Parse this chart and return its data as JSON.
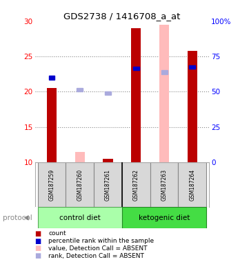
{
  "title": "GDS2738 / 1416708_a_at",
  "samples": [
    "GSM187259",
    "GSM187260",
    "GSM187261",
    "GSM187262",
    "GSM187263",
    "GSM187264"
  ],
  "ylim": [
    10,
    30
  ],
  "yticks_left": [
    10,
    15,
    20,
    25,
    30
  ],
  "bar_bottom": 10,
  "red_bars": {
    "values": [
      20.5,
      null,
      10.5,
      29.0,
      null,
      25.8
    ],
    "color": "#bb0000"
  },
  "pink_bars": {
    "values": [
      null,
      11.5,
      null,
      null,
      29.5,
      null
    ],
    "color": "#ffbbbb"
  },
  "blue_squares": {
    "values": [
      22.0,
      null,
      null,
      23.3,
      null,
      23.5
    ],
    "color": "#0000cc"
  },
  "lightblue_squares": {
    "values": [
      null,
      20.3,
      19.8,
      null,
      22.8,
      null
    ],
    "color": "#aaaadd"
  },
  "control_color": "#aaffaa",
  "ketogenic_color": "#44dd44",
  "protocol_label": "protocol",
  "legend_items": [
    {
      "color": "#bb0000",
      "label": "count"
    },
    {
      "color": "#0000cc",
      "label": "percentile rank within the sample"
    },
    {
      "color": "#ffbbbb",
      "label": "value, Detection Call = ABSENT"
    },
    {
      "color": "#aaaadd",
      "label": "rank, Detection Call = ABSENT"
    }
  ],
  "bar_width": 0.35
}
